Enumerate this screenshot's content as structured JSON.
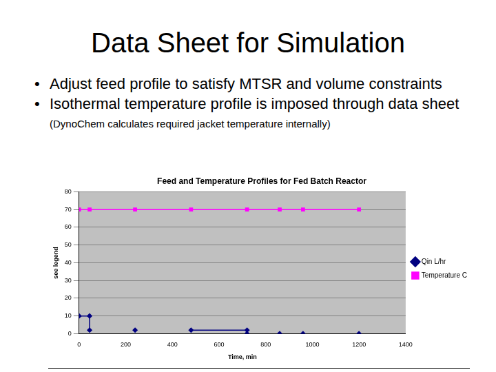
{
  "slide": {
    "title": "Data Sheet for Simulation",
    "bullets": [
      {
        "text": "Adjust feed profile to satisfy MTSR and volume constraints"
      },
      {
        "text": "Isothermal temperature profile is imposed through data sheet",
        "note": "(DynoChem calculates required jacket temperature internally)"
      }
    ]
  },
  "chart_data": {
    "type": "line",
    "title": "Feed and Temperature Profiles for Fed Batch Reactor",
    "x_label": "Time, min",
    "y_label": "see legend",
    "series": [
      {
        "name": "Qin L/hr",
        "color": "#000080",
        "marker": "diamond",
        "x": [
          0,
          45,
          45,
          45,
          240,
          240,
          480,
          720,
          720,
          720,
          860,
          860,
          960,
          960,
          1200
        ],
        "values": [
          10,
          10,
          2,
          null,
          2,
          null,
          2,
          2,
          0,
          null,
          0,
          null,
          0,
          null,
          0
        ]
      },
      {
        "name": "Temperature C",
        "color": "#ff00ff",
        "marker": "square",
        "x": [
          0,
          45,
          240,
          480,
          720,
          860,
          960,
          1200
        ],
        "values": [
          70,
          70,
          70,
          70,
          70,
          70,
          70,
          70
        ]
      }
    ],
    "xlim": [
      0,
      1400
    ],
    "xticks": [
      0,
      200,
      400,
      600,
      800,
      1000,
      1200,
      1400
    ],
    "ylim": [
      0,
      80
    ],
    "yticks": [
      0,
      10,
      20,
      30,
      40,
      50,
      60,
      70,
      80
    ],
    "grid": true,
    "legend": "right"
  }
}
